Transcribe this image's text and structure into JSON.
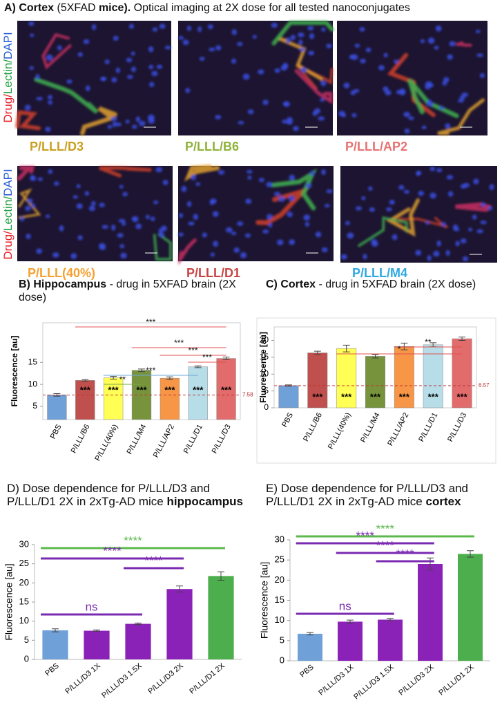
{
  "figure": {
    "title_parts": [
      {
        "text": "A)",
        "bold": true
      },
      {
        "text": "Cortex",
        "bold": true
      },
      {
        "text": "(5XFAD",
        "bold": false
      },
      {
        "text": "mice).",
        "bold": true
      },
      {
        "text": "Optical imaging at 2X dose for all tested nanoconjugates",
        "bold": false
      }
    ],
    "stain_parts": [
      {
        "text": "Drug/",
        "color": "#e8202a"
      },
      {
        "text": "Lectin/",
        "color": "#1fa040"
      },
      {
        "text": "DAPI",
        "color": "#2a5fd6"
      }
    ],
    "images": [
      {
        "label": "P/LLL/D3",
        "color": "#c9a020"
      },
      {
        "label": "P/LLL/B6",
        "color": "#8fb23a"
      },
      {
        "label": "P/LLL/AP2",
        "color": "#e87272"
      },
      {
        "label": "P/LLL(40%)",
        "color": "#f5a030"
      },
      {
        "label": "P/LLL/D1",
        "color": "#c94444"
      },
      {
        "label": "P/LLL/M4",
        "color": "#2ea8e2"
      }
    ]
  },
  "chart_data": [
    {
      "type": "bar",
      "title_parts": [
        {
          "text": "B)",
          "bold": true
        },
        {
          "text": "Hippocampus",
          "bold": true
        },
        {
          "text": "- drug in 5XFAD brain (2X dose)",
          "bold": false
        }
      ],
      "ylabel": "Fluorescence [au]",
      "categories": [
        "PBS",
        "P/LLL/B6",
        "P/LLL(40%)",
        "P/LLL/M4",
        "P/LLL/AP2",
        "P/LLL/D1",
        "P/LLL/D3"
      ],
      "values": [
        7.6,
        10.9,
        11.5,
        13.2,
        11.4,
        14.0,
        15.9
      ],
      "errors": [
        0.3,
        0.2,
        0.3,
        0.3,
        0.3,
        0.2,
        0.3
      ],
      "colors": [
        "#6fa0d8",
        "#c0504d",
        "#ffff55",
        "#77933c",
        "#f79646",
        "#b7dde8",
        "#e26b6b"
      ],
      "bar_annotations": [
        null,
        "***",
        "***",
        "***",
        "***",
        "***",
        "***"
      ],
      "reference": 7.58,
      "reference_color": "#c03030",
      "ylim": [
        2,
        24
      ],
      "yticks": [
        5,
        10,
        15
      ],
      "significance": [
        {
          "label": "***",
          "from": "P/LLL/B6",
          "to": "P/LLL/D3",
          "color": "#e05050"
        },
        {
          "label": "***",
          "from": "P/LLL/M4",
          "to": "P/LLL/D3",
          "color": "#e05050"
        },
        {
          "label": "***",
          "from": "P/LLL/AP2",
          "to": "P/LLL/D3",
          "color": "#e05050"
        },
        {
          "label": "***",
          "from": "P/LLL/D1",
          "to": "P/LLL/D3",
          "color": "#e05050"
        },
        {
          "label": "***",
          "from": "P/LLL(40%)",
          "to": "P/LLL/D1",
          "color": "#6aa8d8"
        },
        {
          "label": "**",
          "from": "P/LLL(40%)",
          "to": "P/LLL/M4",
          "color": "#77a83c"
        }
      ]
    },
    {
      "type": "bar",
      "title_parts": [
        {
          "text": "C)",
          "bold": true
        },
        {
          "text": "Cortex",
          "bold": true
        },
        {
          "text": "- drug in 5XFAD brain (2X dose)",
          "bold": false
        }
      ],
      "ylabel": "Fluorescence [au]",
      "categories": [
        "PBS",
        "P/LLL/B6",
        "P/LLL(40%)",
        "P/LLL/M4",
        "P/LLL/AP2",
        "P/LLL/D1",
        "P/LLL/D3"
      ],
      "values": [
        6.6,
        16.3,
        17.6,
        15.3,
        18.2,
        18.7,
        20.5
      ],
      "errors": [
        0.2,
        0.5,
        1.0,
        0.5,
        1.0,
        0.6,
        0.5
      ],
      "colors": [
        "#6fa0d8",
        "#c0504d",
        "#ffff55",
        "#77933c",
        "#f79646",
        "#b7dde8",
        "#e26b6b"
      ],
      "bar_annotations": [
        null,
        "***",
        "***",
        "***",
        "***",
        "***",
        "***"
      ],
      "reference": 6.57,
      "reference_color": "#c03030",
      "ylim": [
        0,
        24
      ],
      "yticks": [
        0,
        5,
        10,
        15,
        20
      ],
      "significance": [
        {
          "label": "**",
          "from": "P/LLL/AP2",
          "to": "P/LLL/D3",
          "color": "#e05050"
        },
        {
          "label": "*",
          "from": "P/LLL(40%)",
          "to": "P/LLL/D3",
          "color": "#e05050"
        }
      ]
    },
    {
      "type": "bar",
      "title_parts": [
        {
          "text": "D) Dose dependence for P/LLL/D3 and P/LLL/D1 2X in 2xTg-AD mice",
          "bold": false
        },
        {
          "text": "hippocampus",
          "bold": true
        }
      ],
      "ylabel": "Fluorescence [au]",
      "categories": [
        "PBS",
        "P/LLL/D3 1X",
        "P/LLL/D3 1.5X",
        "P/LLL/D3 2X",
        "P/LLL/D1 2X"
      ],
      "values": [
        7.6,
        7.5,
        9.3,
        18.4,
        21.8
      ],
      "errors": [
        0.4,
        0.2,
        0.2,
        0.8,
        1.1
      ],
      "colors": [
        "#6fa0d8",
        "#8b22b8",
        "#8b22b8",
        "#8b22b8",
        "#4cae4c"
      ],
      "ylim": [
        0,
        30
      ],
      "yticks": [
        0,
        5,
        10,
        15,
        20,
        25,
        30
      ],
      "significance": [
        {
          "label": "****",
          "from": "PBS",
          "to": "P/LLL/D1 2X",
          "color": "#5cb84c"
        },
        {
          "label": "****",
          "from": "PBS",
          "to": "P/LLL/D3 2X",
          "color": "#7a2ab0"
        },
        {
          "label": "****",
          "from": "P/LLL/D3 1.5X",
          "to": "P/LLL/D3 2X",
          "color": "#7a2ab0"
        },
        {
          "label": "ns",
          "from": "PBS",
          "to": "P/LLL/D3 1.5X",
          "color": "#7a2ab0"
        }
      ]
    },
    {
      "type": "bar",
      "title_parts": [
        {
          "text": "E) Dose dependence for P/LLL/D3 and P/LLL/D1 2X in 2xTg-AD mice",
          "bold": false
        },
        {
          "text": "cortex",
          "bold": true
        }
      ],
      "ylabel": "Fluorescence [au]",
      "categories": [
        "PBS",
        "P/LLL/D3 1X",
        "P/LLL/D3 1.5X",
        "P/LLL/D3 2X",
        "P/LLL/D1 2X"
      ],
      "values": [
        6.7,
        9.7,
        10.2,
        24.0,
        26.5
      ],
      "errors": [
        0.3,
        0.4,
        0.3,
        1.5,
        0.8
      ],
      "colors": [
        "#6fa0d8",
        "#8b22b8",
        "#8b22b8",
        "#8b22b8",
        "#4cae4c"
      ],
      "ylim": [
        0,
        30
      ],
      "yticks": [
        0,
        5,
        10,
        15,
        20,
        25,
        30
      ],
      "significance": [
        {
          "label": "****",
          "from": "PBS",
          "to": "P/LLL/D1 2X",
          "color": "#5cb84c"
        },
        {
          "label": "****",
          "from": "PBS",
          "to": "P/LLL/D3 2X",
          "color": "#7a2ab0"
        },
        {
          "label": "****",
          "from": "P/LLL/D3 1X",
          "to": "P/LLL/D3 2X",
          "color": "#7a2ab0"
        },
        {
          "label": "****",
          "from": "P/LLL/D3 1.5X",
          "to": "P/LLL/D3 2X",
          "color": "#7a2ab0"
        },
        {
          "label": "ns",
          "from": "PBS",
          "to": "P/LLL/D3 1.5X",
          "color": "#7a2ab0"
        }
      ]
    }
  ]
}
